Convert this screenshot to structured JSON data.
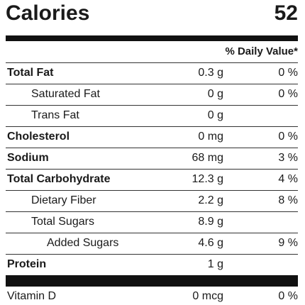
{
  "calories": {
    "label": "Calories",
    "value": "52"
  },
  "daily_value_header": "% Daily Value*",
  "nutrients": [
    {
      "name": "Total Fat",
      "amount": "0.3 g",
      "dv": "0 %"
    },
    {
      "name": "Saturated Fat",
      "amount": "0 g",
      "dv": "0 %"
    },
    {
      "name": "Trans Fat",
      "amount": "0 g",
      "dv": ""
    },
    {
      "name": "Cholesterol",
      "amount": "0 mg",
      "dv": "0 %"
    },
    {
      "name": "Sodium",
      "amount": "68 mg",
      "dv": "3 %"
    },
    {
      "name": "Total Carbohydrate",
      "amount": "12.3 g",
      "dv": "4 %"
    },
    {
      "name": "Dietary Fiber",
      "amount": "2.2 g",
      "dv": "8 %"
    },
    {
      "name": "Total Sugars",
      "amount": "8.9 g",
      "dv": ""
    },
    {
      "name": "Added Sugars",
      "amount": "4.6 g",
      "dv": "9 %"
    },
    {
      "name": "Protein",
      "amount": "1 g",
      "dv": ""
    }
  ],
  "vitamins": [
    {
      "name": "Vitamin D",
      "amount": "0 mcg",
      "dv": "0 %"
    }
  ]
}
